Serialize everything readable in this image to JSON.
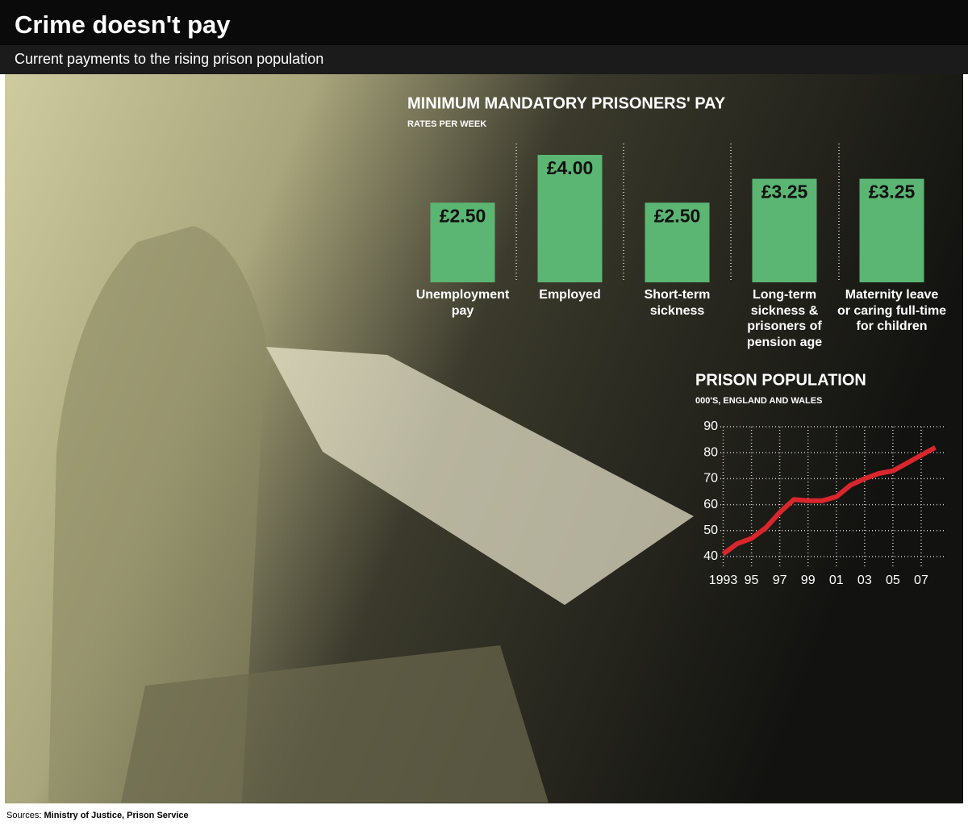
{
  "title": "Crime doesn't pay",
  "subtitle": "Current payments to the rising prison population",
  "source_label": "Sources:",
  "source": "Ministry of Justice, Prison Service",
  "chart_data": [
    {
      "type": "bar",
      "title": "MINIMUM MANDATORY PRISONERS' PAY",
      "subtitle": "RATES PER WEEK",
      "categories": [
        "Unemployment pay",
        "Employed",
        "Short-term sickness",
        "Long-term sickness & prisoners of pension age",
        "Maternity leave or caring full-time for children"
      ],
      "values": [
        2.5,
        4,
        2.5,
        3.25,
        3.25
      ],
      "value_labels": [
        "£2.50",
        "£4.00",
        "£2.50",
        "£3.25",
        "£3.25"
      ],
      "color": "#5bb573"
    },
    {
      "type": "line",
      "title": "PRISON POPULATION",
      "subtitle": "000'S, ENGLAND AND WALES",
      "x": [
        1993,
        1994,
        1995,
        1996,
        1997,
        1998,
        1999,
        2000,
        2001,
        2002,
        2003,
        2004,
        2005,
        2006,
        2007,
        2008
      ],
      "values": [
        41,
        45,
        47,
        51,
        57,
        62,
        61.5,
        61.5,
        63,
        67.5,
        70,
        72,
        73,
        76,
        79,
        82
      ],
      "color": "#d9262c",
      "xlim": [
        1992.8,
        2008.6
      ],
      "ylim": [
        40,
        90
      ],
      "xticks": [
        1993,
        {
          "value": 1995,
          "label": "95"
        },
        {
          "value": 1997,
          "label": "97"
        },
        {
          "value": 1999,
          "label": "99"
        },
        {
          "value": 2001,
          "label": "01"
        },
        {
          "value": 2003,
          "label": "03"
        },
        {
          "value": 2005,
          "label": "05"
        },
        {
          "value": 2007,
          "label": "07"
        }
      ],
      "yticks": [
        40,
        50,
        60,
        70,
        80,
        90
      ],
      "grid": true
    }
  ]
}
